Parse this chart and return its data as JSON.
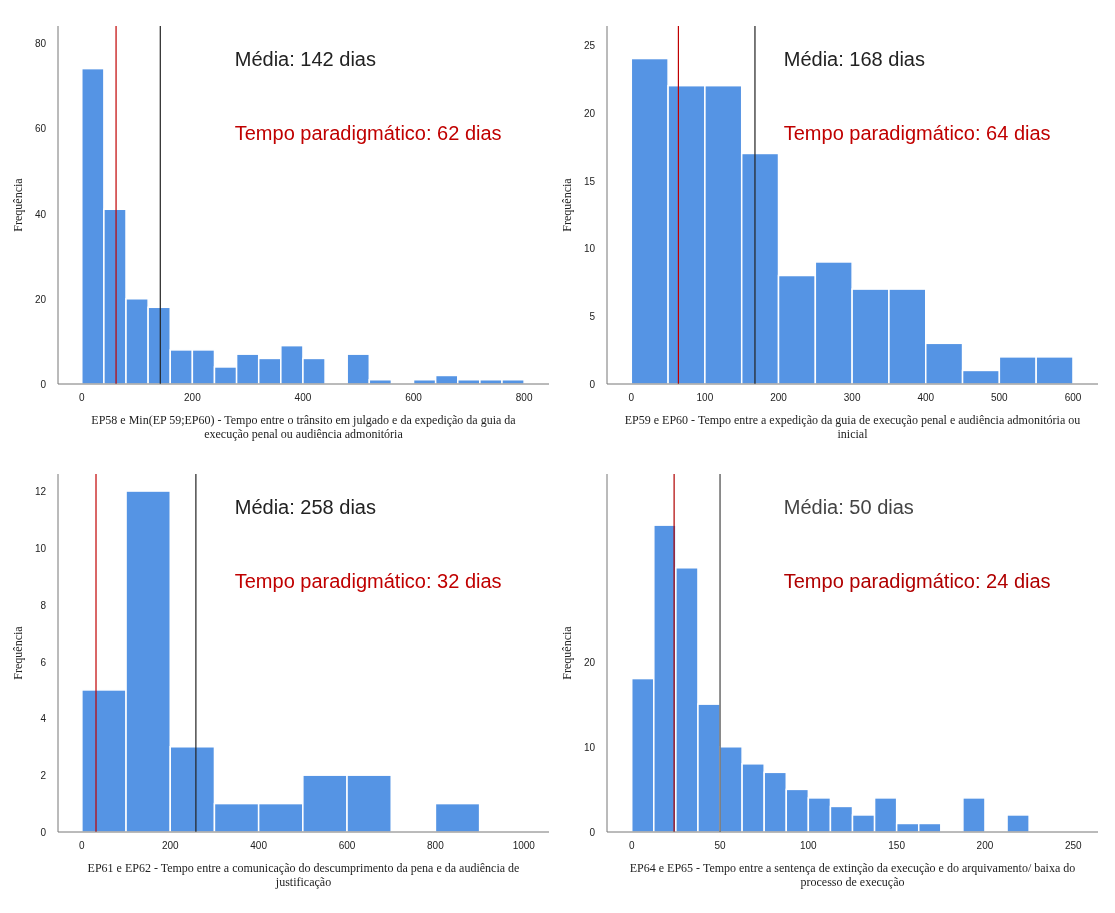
{
  "chart_data": [
    {
      "type": "histogram",
      "xlabel": "EP58 e Min(EP 59;EP60) - Tempo entre o trânsito em julgado e da expedição da guia da execução penal ou audiência admonitória",
      "ylabel": "Frequência",
      "color": "#5594e4",
      "bins": [
        0,
        40,
        80,
        120,
        160,
        200,
        240,
        280,
        320,
        360,
        400,
        440,
        480,
        520,
        560,
        600,
        640,
        680,
        720,
        760,
        800
      ],
      "values": [
        74,
        41,
        20,
        18,
        8,
        8,
        4,
        7,
        6,
        9,
        6,
        0,
        7,
        1,
        0,
        1,
        2,
        1,
        1,
        1
      ],
      "xlim": [
        -43,
        845
      ],
      "ylim": [
        0,
        84
      ],
      "xticks": [
        0,
        200,
        400,
        600,
        800
      ],
      "yticks": [
        0,
        20,
        40,
        60,
        80
      ],
      "ref_lines": [
        {
          "axis": "x",
          "value": 142,
          "label": "Média: 142 dias",
          "color": "#222222"
        },
        {
          "axis": "x",
          "value": 62,
          "label": "Tempo paradigmático: 62 dias",
          "color": "#c00000"
        }
      ]
    },
    {
      "type": "histogram",
      "xlabel": "EP59 e EP60 - Tempo entre a expedição da guia de execução penal e audiência admonitória ou inicial",
      "ylabel": "Frequência",
      "color": "#5594e4",
      "bins": [
        0,
        50,
        100,
        150,
        200,
        250,
        300,
        350,
        400,
        450,
        500,
        550,
        600
      ],
      "values": [
        24,
        22,
        22,
        17,
        8,
        9,
        7,
        7,
        3,
        1,
        2,
        2
      ],
      "xlim": [
        -33,
        634
      ],
      "ylim": [
        0,
        26.4
      ],
      "xticks": [
        0,
        100,
        200,
        300,
        400,
        500,
        600
      ],
      "yticks": [
        0,
        5,
        10,
        15,
        20,
        25
      ],
      "ref_lines": [
        {
          "axis": "x",
          "value": 168,
          "label": "Média: 168 dias",
          "color": "#222222"
        },
        {
          "axis": "x",
          "value": 64,
          "label": "Tempo paradigmático: 64 dias",
          "color": "#c00000"
        }
      ]
    },
    {
      "type": "histogram",
      "xlabel": "EP61 e EP62 - Tempo entre a comunicação do descumprimento da pena e da audiência de justificação",
      "ylabel": "Frequência",
      "color": "#5594e4",
      "bins": [
        0,
        100,
        200,
        300,
        400,
        500,
        600,
        700,
        800,
        900
      ],
      "values": [
        5,
        12,
        3,
        1,
        1,
        2,
        2,
        0,
        1
      ],
      "xlim": [
        -54,
        1057
      ],
      "ylim": [
        0,
        12.6
      ],
      "xticks": [
        0,
        200,
        400,
        600,
        800,
        1000
      ],
      "yticks": [
        0,
        2,
        4,
        6,
        8,
        10,
        12
      ],
      "ref_lines": [
        {
          "axis": "x",
          "value": 258,
          "label": "Média: 258 dias",
          "color": "#222222"
        },
        {
          "axis": "x",
          "value": 32,
          "label": "Tempo paradigmático: 32 dias",
          "color": "#c00000"
        }
      ]
    },
    {
      "type": "histogram",
      "xlabel": "EP64 e EP65 - Tempo entre a sentença de extinção da execução e do arquivamento/ baixa do processo de execução",
      "ylabel": "Frequência",
      "color": "#5594e4",
      "bins": [
        0,
        12.5,
        25,
        37.5,
        50,
        62.5,
        75,
        87.5,
        100,
        112.5,
        125,
        137.5,
        150,
        162.5,
        175,
        187.5,
        200,
        212.5,
        225
      ],
      "values": [
        18,
        36,
        31,
        15,
        10,
        8,
        7,
        5,
        4,
        3,
        2,
        4,
        1,
        1,
        0,
        4,
        0,
        2
      ],
      "xlim": [
        -14,
        264
      ],
      "ylim": [
        0,
        42
      ],
      "xticks": [
        0,
        50,
        100,
        150,
        200,
        250
      ],
      "yticks": [
        0,
        10,
        20
      ],
      "ref_lines": [
        {
          "axis": "x",
          "value": 50,
          "label": "Média: 50 dias",
          "color": "#444444"
        },
        {
          "axis": "x",
          "value": 24,
          "label": "Tempo paradigmático: 24 dias",
          "color": "#b00000"
        }
      ]
    }
  ]
}
